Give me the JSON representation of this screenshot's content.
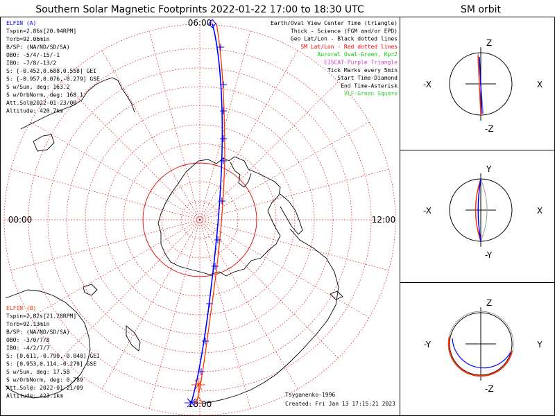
{
  "title": "Southern Solar Magnetic Footprints 2022-01-22 17:00 to 18:30 UTC",
  "orbit_header": "SM orbit",
  "map": {
    "hour_labels": {
      "top": "06:00",
      "left": "00:00",
      "right": "12:00",
      "bottom": "18:00"
    }
  },
  "legend": {
    "lines": [
      {
        "text": "Earth/Oval View Center Time (triangle)",
        "color": "#000000"
      },
      {
        "text": "Thick - Science (FGM and/or EPD)",
        "color": "#000000"
      },
      {
        "text": "Geo Lat/Lon - Black dotted lines",
        "color": "#000000"
      },
      {
        "text": "SM Lat/Lon - Red dotted lines",
        "color": "#ff0000"
      },
      {
        "text": "Auroral Oval-Green, Kp=2",
        "color": "#00cc00"
      },
      {
        "text": "EISCAT-Purple Triangle",
        "color": "#cc44cc"
      },
      {
        "text": "Tick Marks every 5min",
        "color": "#000000"
      },
      {
        "text": "Start Time-Diamond",
        "color": "#000000"
      },
      {
        "text": "End Time-Asterisk",
        "color": "#000000"
      },
      {
        "text": "VLF-Green Square",
        "color": "#33cc33"
      }
    ]
  },
  "elfin_a": {
    "color": "#0000ff",
    "name": "ELFIN (A)",
    "lines": [
      "Tspin=2.86s[20.94RPM]",
      "Torb=92.06min",
      "B/SP: (NA/ND/SD/SA)",
      "OBO: -5/4/-15/-1",
      "IBO: -7/8/-13/2",
      "S: [-0.452,0.688,0.558] GEI",
      "S: [-0.957,0.076,-0.279] GSE",
      "S w/Sun, deg: 163.2",
      "S w/OrbNorm, deg: 168.1",
      "Att.Sol@2022-01-23/00",
      "Altitude: 420.7km"
    ]
  },
  "elfin_b": {
    "color": "#ff3300",
    "name": "ELFIN (B)",
    "lines": [
      "Tspin=2.82s[21.28RPM]",
      "Torb=92.13min",
      "B/SP: (NA/ND/SD/SA)",
      "OBO: -3/0/7/8",
      "IBO: -4/2/7/7",
      "S: [0.611,-0.790,-0.040] GEI",
      "S: [0.953,0.114,-0.279] GSE",
      "S w/Sun, deg: 17.58",
      "S w/OrbNorm, deg: 0.789",
      "Att.Sol@: 2022-01-21/09",
      "Altitude: 423.1km"
    ]
  },
  "footer": {
    "model": "Tsyganenko-1996",
    "created": "Created: Fri Jan 13 17:15:21 2023"
  },
  "orbit_panels": [
    {
      "top": "Z",
      "bottom": "-Z",
      "left": "-X",
      "right": "X"
    },
    {
      "top": "Y",
      "bottom": "-Y",
      "left": "-X",
      "right": "X"
    },
    {
      "top": "Z",
      "bottom": "-Z",
      "left": "-Y",
      "right": "Y"
    }
  ],
  "colors": {
    "sc_a": "#0000ff",
    "sc_b": "#ff3300",
    "sm_grid": "#e00000",
    "oval": "#22dd22",
    "coast": "#000000"
  }
}
